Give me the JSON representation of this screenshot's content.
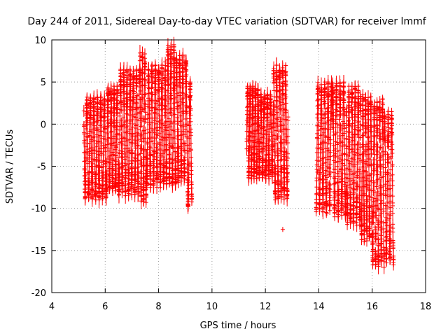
{
  "chart_data": {
    "type": "scatter",
    "title": "Day 244 of 2011, Sidereal Day-to-day VTEC variation (SDTVAR) for receiver lmmf",
    "xlabel": "GPS time / hours",
    "ylabel": "SDTVAR / TECUs",
    "xlim": [
      4,
      18
    ],
    "ylim": [
      -20,
      10
    ],
    "xticks": [
      4,
      6,
      8,
      10,
      12,
      14,
      16,
      18
    ],
    "yticks": [
      10,
      5,
      0,
      -5,
      -10,
      -15,
      -20
    ],
    "xtick_labels": [
      "4",
      "6",
      "8",
      "10",
      "12",
      "14",
      "16",
      "18"
    ],
    "ytick_labels": [
      "10",
      "5",
      "0",
      "-5",
      "-10",
      "-15",
      "-20"
    ],
    "grid": true,
    "marker": "+",
    "error_bars": true,
    "color": "#ff0000",
    "point_stride": 0.002,
    "error_half_width": 0.7,
    "segments": [
      {
        "x_start": 5.2,
        "x_end": 6.05,
        "y_min": -9,
        "y_max": 3.2
      },
      {
        "x_start": 6.05,
        "x_end": 6.5,
        "y_min": -8,
        "y_max": 4.5
      },
      {
        "x_start": 6.5,
        "x_end": 7.3,
        "y_min": -8.5,
        "y_max": 6.5
      },
      {
        "x_start": 7.3,
        "x_end": 7.55,
        "y_min": -9.5,
        "y_max": 8.5
      },
      {
        "x_start": 7.55,
        "x_end": 8.25,
        "y_min": -7.5,
        "y_max": 7.0
      },
      {
        "x_start": 8.25,
        "x_end": 8.65,
        "y_min": -7.5,
        "y_max": 9.5
      },
      {
        "x_start": 8.65,
        "x_end": 9.05,
        "y_min": -7.0,
        "y_max": 8.2
      },
      {
        "x_start": 9.05,
        "x_end": 9.25,
        "y_min": -10.0,
        "y_max": 5.0
      },
      {
        "x_start": 11.3,
        "x_end": 11.8,
        "y_min": -6.5,
        "y_max": 4.5
      },
      {
        "x_start": 11.8,
        "x_end": 12.3,
        "y_min": -6.5,
        "y_max": 3.5
      },
      {
        "x_start": 12.3,
        "x_end": 12.85,
        "y_min": -9.0,
        "y_max": 7.0
      },
      {
        "x_start": 13.9,
        "x_end": 14.5,
        "y_min": -10.5,
        "y_max": 5.0
      },
      {
        "x_start": 14.5,
        "x_end": 15.05,
        "y_min": -11.0,
        "y_max": 5.0
      },
      {
        "x_start": 15.05,
        "x_end": 15.55,
        "y_min": -12.0,
        "y_max": 4.5
      },
      {
        "x_start": 15.55,
        "x_end": 16.0,
        "y_min": -14.0,
        "y_max": 3.5
      },
      {
        "x_start": 16.0,
        "x_end": 16.45,
        "y_min": -17.0,
        "y_max": 3.0
      },
      {
        "x_start": 16.45,
        "x_end": 16.8,
        "y_min": -16.5,
        "y_max": 1.5
      }
    ],
    "outliers": [
      {
        "x": 12.65,
        "y": -12.5
      },
      {
        "x": 16.8,
        "y": -16.7
      },
      {
        "x": 14.3,
        "y": -9.6
      },
      {
        "x": 14.3,
        "y": -10.6
      },
      {
        "x": 13.95,
        "y": -5.7
      }
    ]
  }
}
